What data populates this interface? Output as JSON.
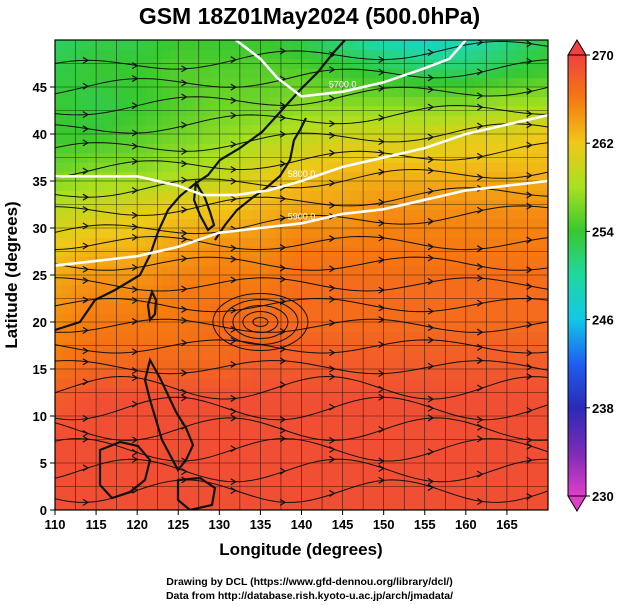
{
  "title": "GSM 18Z01May2024 (500.0hPa)",
  "credits": {
    "line1": "Drawing by DCL (https://www.gfd-dennou.org/library/dcl/)",
    "line2": "Data from http://database.rish.kyoto-u.ac.jp/arch/jmadata/"
  },
  "chart_data": {
    "type": "heatmap",
    "xlabel": "Longitude (degrees)",
    "ylabel": "Latitude  (degrees)",
    "xlim": [
      110,
      170
    ],
    "ylim": [
      0,
      50
    ],
    "xticks": [
      "110",
      "115",
      "120",
      "125",
      "130",
      "135",
      "140",
      "145",
      "150",
      "155",
      "160",
      "165"
    ],
    "yticks": [
      "0",
      "5",
      "10",
      "15",
      "20",
      "25",
      "30",
      "35",
      "40",
      "45"
    ],
    "grid": true,
    "colorbar": {
      "min": 230,
      "max": 270,
      "ticks": [
        "230",
        "238",
        "246",
        "254",
        "262",
        "270"
      ],
      "stops": [
        {
          "value": 230,
          "color": "#e040c8"
        },
        {
          "value": 234,
          "color": "#7a2ab8"
        },
        {
          "value": 238,
          "color": "#2a2ab8"
        },
        {
          "value": 242,
          "color": "#1f5ef0"
        },
        {
          "value": 246,
          "color": "#10c8e8"
        },
        {
          "value": 250,
          "color": "#20d8a0"
        },
        {
          "value": 254,
          "color": "#38c830"
        },
        {
          "value": 258,
          "color": "#a8e020"
        },
        {
          "value": 262,
          "color": "#f0c818"
        },
        {
          "value": 266,
          "color": "#f57a10"
        },
        {
          "value": 270,
          "color": "#f04040"
        }
      ]
    },
    "contour_labels": [
      "5700.0",
      "5800.0",
      "5900.0"
    ],
    "temperature_field": [
      {
        "lat": 50,
        "lon_values": [
          252,
          253,
          253,
          254,
          254,
          254,
          253,
          251,
          249,
          248,
          249,
          251,
          253
        ]
      },
      {
        "lat": 47,
        "lon_values": [
          253,
          254,
          254,
          255,
          255,
          255,
          255,
          254,
          253,
          252,
          252,
          253,
          254
        ]
      },
      {
        "lat": 43,
        "lon_values": [
          254,
          253,
          254,
          255,
          256,
          256,
          257,
          257,
          257,
          257,
          257,
          258,
          258
        ]
      },
      {
        "lat": 40,
        "lon_values": [
          254,
          254,
          255,
          256,
          257,
          258,
          259,
          260,
          260,
          260,
          261,
          261,
          262
        ]
      },
      {
        "lat": 36,
        "lon_values": [
          256,
          257,
          257,
          258,
          259,
          261,
          262,
          263,
          263,
          263,
          263,
          263,
          263
        ]
      },
      {
        "lat": 32,
        "lon_values": [
          259,
          260,
          261,
          262,
          262,
          263,
          264,
          264,
          265,
          265,
          265,
          265,
          265
        ]
      },
      {
        "lat": 28,
        "lon_values": [
          262,
          263,
          263,
          264,
          265,
          265,
          266,
          266,
          266,
          266,
          266,
          266,
          266
        ]
      },
      {
        "lat": 24,
        "lon_values": [
          264,
          265,
          265,
          266,
          266,
          266,
          267,
          267,
          267,
          267,
          267,
          267,
          267
        ]
      },
      {
        "lat": 20,
        "lon_values": [
          265,
          266,
          266,
          266,
          267,
          267,
          267,
          267,
          267,
          267,
          267,
          267,
          267
        ]
      },
      {
        "lat": 16,
        "lon_values": [
          266,
          267,
          267,
          267,
          267,
          268,
          268,
          268,
          268,
          268,
          268,
          268,
          268
        ]
      },
      {
        "lat": 12,
        "lon_values": [
          268,
          269,
          269,
          269,
          269,
          269,
          269,
          269,
          269,
          269,
          269,
          269,
          269
        ]
      },
      {
        "lat": 8,
        "lon_values": [
          269,
          269,
          269,
          269,
          269,
          269,
          269,
          269,
          269,
          269,
          269,
          269,
          269
        ]
      },
      {
        "lat": 4,
        "lon_values": [
          269,
          269,
          269,
          269,
          269,
          269,
          269,
          269,
          269,
          269,
          269,
          269,
          269
        ]
      },
      {
        "lat": 0,
        "lon_values": [
          269,
          269,
          269,
          269,
          269,
          269,
          269,
          269,
          269,
          269,
          269,
          269,
          269
        ]
      }
    ],
    "field_lons": [
      110,
      115,
      120,
      125,
      130,
      135,
      140,
      145,
      150,
      155,
      160,
      165,
      170
    ],
    "height_contours": [
      {
        "label": "5700.0",
        "points": [
          [
            132,
            50
          ],
          [
            135,
            48
          ],
          [
            137,
            46
          ],
          [
            140,
            44
          ],
          [
            145,
            44.5
          ],
          [
            150,
            45.5
          ],
          [
            155,
            47
          ],
          [
            158,
            48
          ],
          [
            160,
            50
          ]
        ]
      },
      {
        "label": "5800.0",
        "points": [
          [
            110,
            35.5
          ],
          [
            115,
            35.5
          ],
          [
            120,
            35.5
          ],
          [
            125,
            34.5
          ],
          [
            128,
            33.5
          ],
          [
            132,
            33.5
          ],
          [
            136,
            34
          ],
          [
            140,
            35
          ],
          [
            145,
            36.5
          ],
          [
            150,
            37.5
          ],
          [
            155,
            38.5
          ],
          [
            160,
            40
          ],
          [
            165,
            41
          ],
          [
            170,
            42
          ]
        ]
      },
      {
        "label": "5900.0",
        "points": [
          [
            110,
            26
          ],
          [
            115,
            26.5
          ],
          [
            120,
            27
          ],
          [
            125,
            28
          ],
          [
            130,
            29.5
          ],
          [
            135,
            30
          ],
          [
            140,
            30.5
          ],
          [
            145,
            31.5
          ],
          [
            150,
            32
          ],
          [
            155,
            33
          ],
          [
            160,
            34
          ],
          [
            165,
            34.5
          ],
          [
            170,
            35
          ]
        ]
      }
    ]
  }
}
